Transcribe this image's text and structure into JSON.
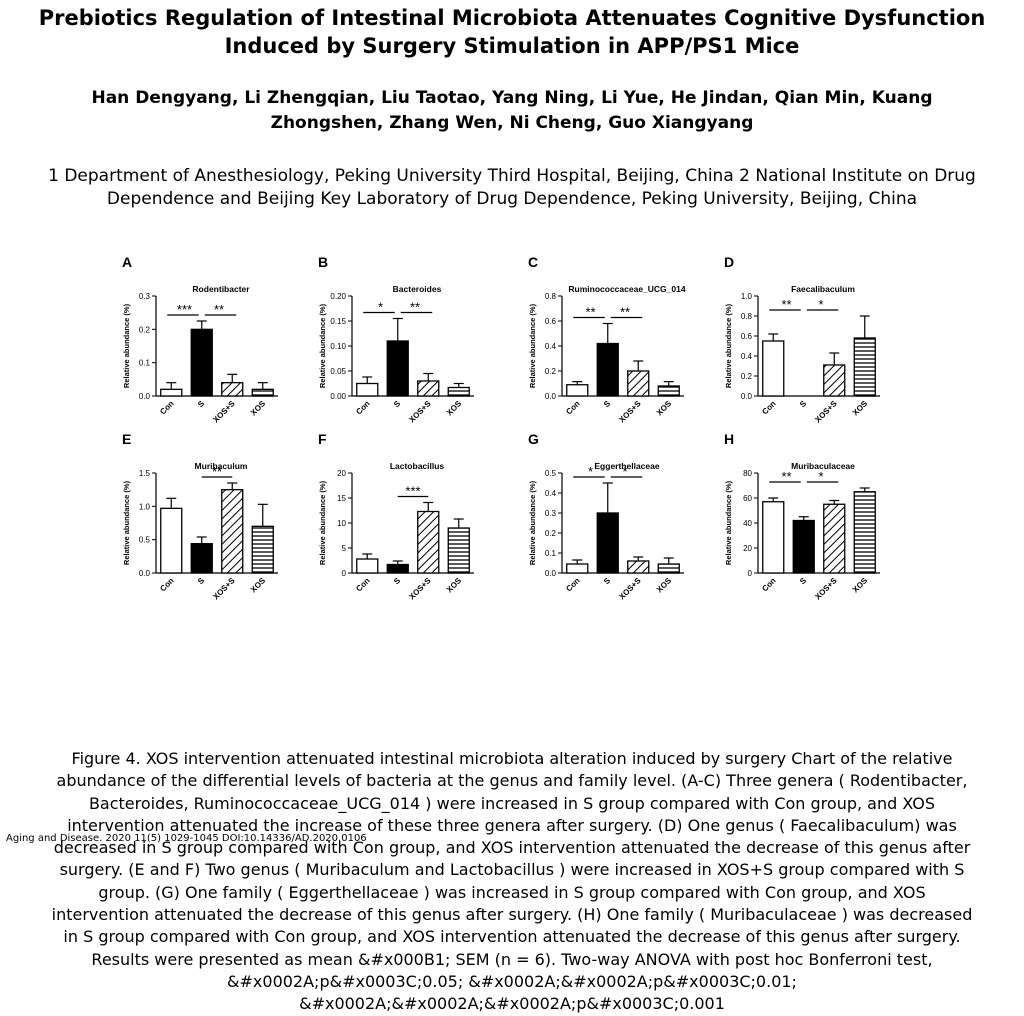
{
  "paper": {
    "title_line1": "Prebiotics Regulation of Intestinal Microbiota Attenuates Cognitive Dysfunction",
    "title_line2": "Induced by Surgery Stimulation in APP/PS1 Mice",
    "authors_line1": "Han Dengyang, Li Zhengqian, Liu Taotao, Yang Ning, Li Yue, He Jindan, Qian Min, Kuang",
    "authors_line2": "Zhongshen, Zhang Wen, Ni Cheng, Guo Xiangyang",
    "affiliation_line1": "1 Department of Anesthesiology, Peking University Third Hospital, Beijing, China 2 National Institute on Drug",
    "affiliation_line2": "Dependence and Beijing Key Laboratory of Drug Dependence, Peking University, Beijing, China",
    "caption_lines": [
      "Figure 4.   XOS intervention attenuated intestinal microbiota alteration induced by surgery Chart of the relative",
      "abundance of the differential levels of bacteria at the genus and family level. (A-C) Three genera ( Rodentibacter,",
      "Bacteroides, Ruminococcaceae_UCG_014 ) were increased in S group compared with Con group, and XOS",
      "intervention attenuated the increase of these three genera after surgery. (D) One genus ( Faecalibaculum)  was",
      "decreased in S group compared with Con group, and XOS intervention attenuated the decrease of this genus after",
      "surgery. (E and F) Two genus ( Muribaculum  and  Lactobacillus ) were increased in XOS+S group compared with S",
      "group. (G) One family ( Eggerthellaceae ) was increased in S group compared with Con group, and XOS",
      "intervention attenuated the decrease of this genus after surgery. (H) One family ( Muribaculaceae ) was decreased",
      "in S group compared with Con group, and XOS intervention attenuated the decrease of this genus after surgery.",
      "Results were presented as mean &#x000B1; SEM (n = 6). Two-way ANOVA with post hoc Bonferroni test,",
      "&#x0002A;p&#x0003C;0.05; &#x0002A;&#x0002A;p&#x0003C;0.01;",
      "&#x0002A;&#x0002A;&#x0002A;p&#x0003C;0.001"
    ],
    "journal_line": "Aging and Disease. 2020 11(5) 1029-1045 DOI:10.14336/AD.2020.0106"
  },
  "chart_data": [
    {
      "type": "bar",
      "panel": "A",
      "title": "Rodentibacter",
      "ylabel": "Relative abundance (%)",
      "categories": [
        "Con",
        "S",
        "XOS+S",
        "XOS"
      ],
      "values": [
        0.02,
        0.2,
        0.04,
        0.02
      ],
      "errors": [
        0.02,
        0.025,
        0.025,
        0.02
      ],
      "ylim": [
        0,
        0.3
      ],
      "yticks": [
        "0.0",
        "0.1",
        "0.2",
        "0.3"
      ],
      "significance": [
        "***",
        "**"
      ]
    },
    {
      "type": "bar",
      "panel": "B",
      "title": "Bacteroides",
      "ylabel": "Relative abundance (%)",
      "categories": [
        "Con",
        "S",
        "XOS+S",
        "XOS"
      ],
      "values": [
        0.025,
        0.11,
        0.03,
        0.017
      ],
      "errors": [
        0.013,
        0.045,
        0.015,
        0.008
      ],
      "ylim": [
        0,
        0.2
      ],
      "yticks": [
        "0.00",
        "0.05",
        "0.10",
        "0.15",
        "0.20"
      ],
      "significance": [
        "*",
        "**"
      ]
    },
    {
      "type": "bar",
      "panel": "C",
      "title": "Ruminococcaceae_UCG_014",
      "ylabel": "Relative abundance (%)",
      "categories": [
        "Con",
        "S",
        "XOS+S",
        "XOS"
      ],
      "values": [
        0.09,
        0.42,
        0.2,
        0.08
      ],
      "errors": [
        0.025,
        0.16,
        0.08,
        0.035
      ],
      "ylim": [
        0,
        0.8
      ],
      "yticks": [
        "0.0",
        "0.2",
        "0.4",
        "0.6",
        "0.8"
      ],
      "significance": [
        "**",
        "**"
      ]
    },
    {
      "type": "bar",
      "panel": "D",
      "title": "Faecalibaculum",
      "ylabel": "Relative abundance (%)",
      "categories": [
        "Con",
        "S",
        "XOS+S",
        "XOS"
      ],
      "values": [
        0.55,
        0.0,
        0.31,
        0.58
      ],
      "errors": [
        0.07,
        0.0,
        0.12,
        0.22
      ],
      "ylim": [
        0,
        1.0
      ],
      "yticks": [
        "0.0",
        "0.2",
        "0.4",
        "0.6",
        "0.8",
        "1.0"
      ],
      "significance": [
        "**",
        "*"
      ]
    },
    {
      "type": "bar",
      "panel": "E",
      "title": "Muribaculum",
      "ylabel": "Relative abundance (%)",
      "categories": [
        "Con",
        "S",
        "XOS+S",
        "XOS"
      ],
      "values": [
        0.97,
        0.44,
        1.25,
        0.7
      ],
      "errors": [
        0.15,
        0.1,
        0.1,
        0.33
      ],
      "ylim": [
        0,
        1.5
      ],
      "yticks": [
        "0.0",
        "0.5",
        "1.0",
        "1.5"
      ],
      "significance": [
        "**"
      ]
    },
    {
      "type": "bar",
      "panel": "F",
      "title": "Lactobacillus",
      "ylabel": "Relative abundance (%)",
      "categories": [
        "Con",
        "S",
        "XOS+S",
        "XOS"
      ],
      "values": [
        2.8,
        1.7,
        12.3,
        9.0
      ],
      "errors": [
        1.0,
        0.7,
        1.8,
        1.8
      ],
      "ylim": [
        0,
        20
      ],
      "yticks": [
        "0",
        "5",
        "10",
        "15",
        "20"
      ],
      "significance": [
        "***"
      ]
    },
    {
      "type": "bar",
      "panel": "G",
      "title": "Eggerthellaceae",
      "ylabel": "Relative abundance (%)",
      "categories": [
        "Con",
        "S",
        "XOS+S",
        "XOS"
      ],
      "values": [
        0.045,
        0.3,
        0.06,
        0.045
      ],
      "errors": [
        0.02,
        0.15,
        0.02,
        0.03
      ],
      "ylim": [
        0,
        0.5
      ],
      "yticks": [
        "0.0",
        "0.1",
        "0.2",
        "0.3",
        "0.4",
        "0.5"
      ],
      "significance": [
        "*",
        "*"
      ]
    },
    {
      "type": "bar",
      "panel": "H",
      "title": "Muribaculaceae",
      "ylabel": "Relative abundance (%)",
      "categories": [
        "Con",
        "S",
        "XOS+S",
        "XOS"
      ],
      "values": [
        57,
        42,
        55,
        65
      ],
      "errors": [
        3,
        3,
        3,
        3
      ],
      "ylim": [
        0,
        80
      ],
      "yticks": [
        "0",
        "20",
        "40",
        "60",
        "80"
      ],
      "significance": [
        "**",
        "*"
      ]
    }
  ]
}
